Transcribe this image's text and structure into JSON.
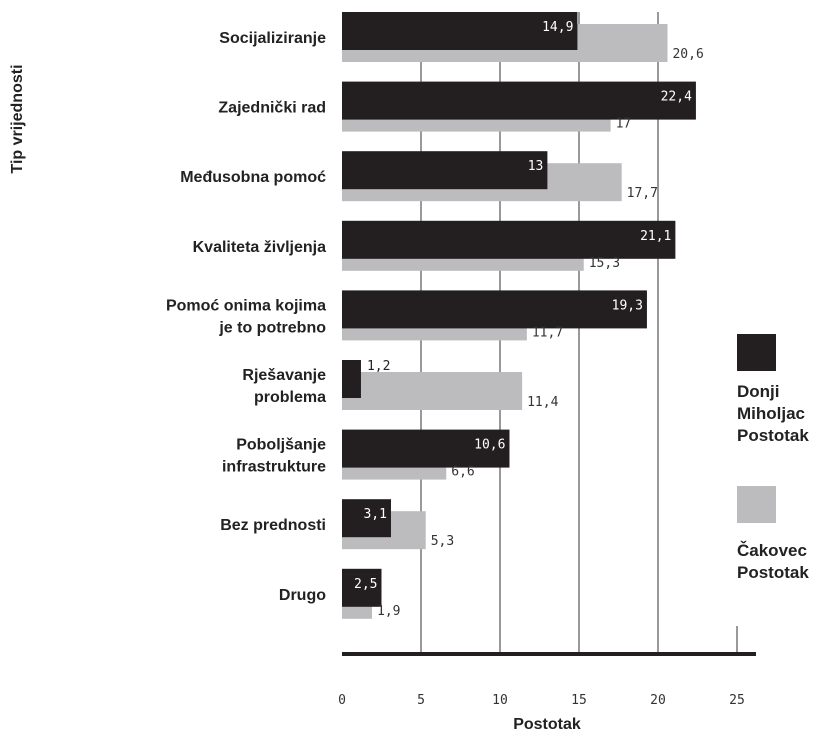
{
  "chart_data": {
    "type": "bar",
    "orientation": "horizontal",
    "categories": [
      [
        "Socijaliziranje"
      ],
      [
        "Zajednički rad"
      ],
      [
        "Međusobna pomoć"
      ],
      [
        "Kvaliteta življenja"
      ],
      [
        "Pomoć onima kojima",
        "je to potrebno"
      ],
      [
        "Rješavanje",
        "problema"
      ],
      [
        "Poboljšanje",
        "infrastrukture"
      ],
      [
        "Bez prednosti"
      ],
      [
        "Drugo"
      ]
    ],
    "series": [
      {
        "name": [
          "Donji",
          "Miholjac",
          "Postotak"
        ],
        "color": "#231f20",
        "values": [
          14.9,
          22.4,
          13,
          21.1,
          19.3,
          1.2,
          10.6,
          3.1,
          2.5
        ],
        "labels": [
          "14,9",
          "22,4",
          "13",
          "21,1",
          "19,3",
          "1,2",
          "10,6",
          "3,1",
          "2,5"
        ]
      },
      {
        "name": [
          "Čakovec",
          "Postotak"
        ],
        "color": "#bcbcbe",
        "values": [
          20.6,
          17,
          17.7,
          15.3,
          11.7,
          11.4,
          6.6,
          5.3,
          1.9
        ],
        "labels": [
          "20,6",
          "17",
          "17,7",
          "15,3",
          "11,7",
          "11,4",
          "6,6",
          "5,3",
          "1,9"
        ]
      }
    ],
    "xlabel": "Postotak",
    "ylabel": "Tip vrijednosti",
    "xlim": [
      0,
      25
    ],
    "xticks": [
      0,
      5,
      10,
      15,
      20,
      25
    ],
    "grid": "vertical",
    "legend": "right"
  }
}
